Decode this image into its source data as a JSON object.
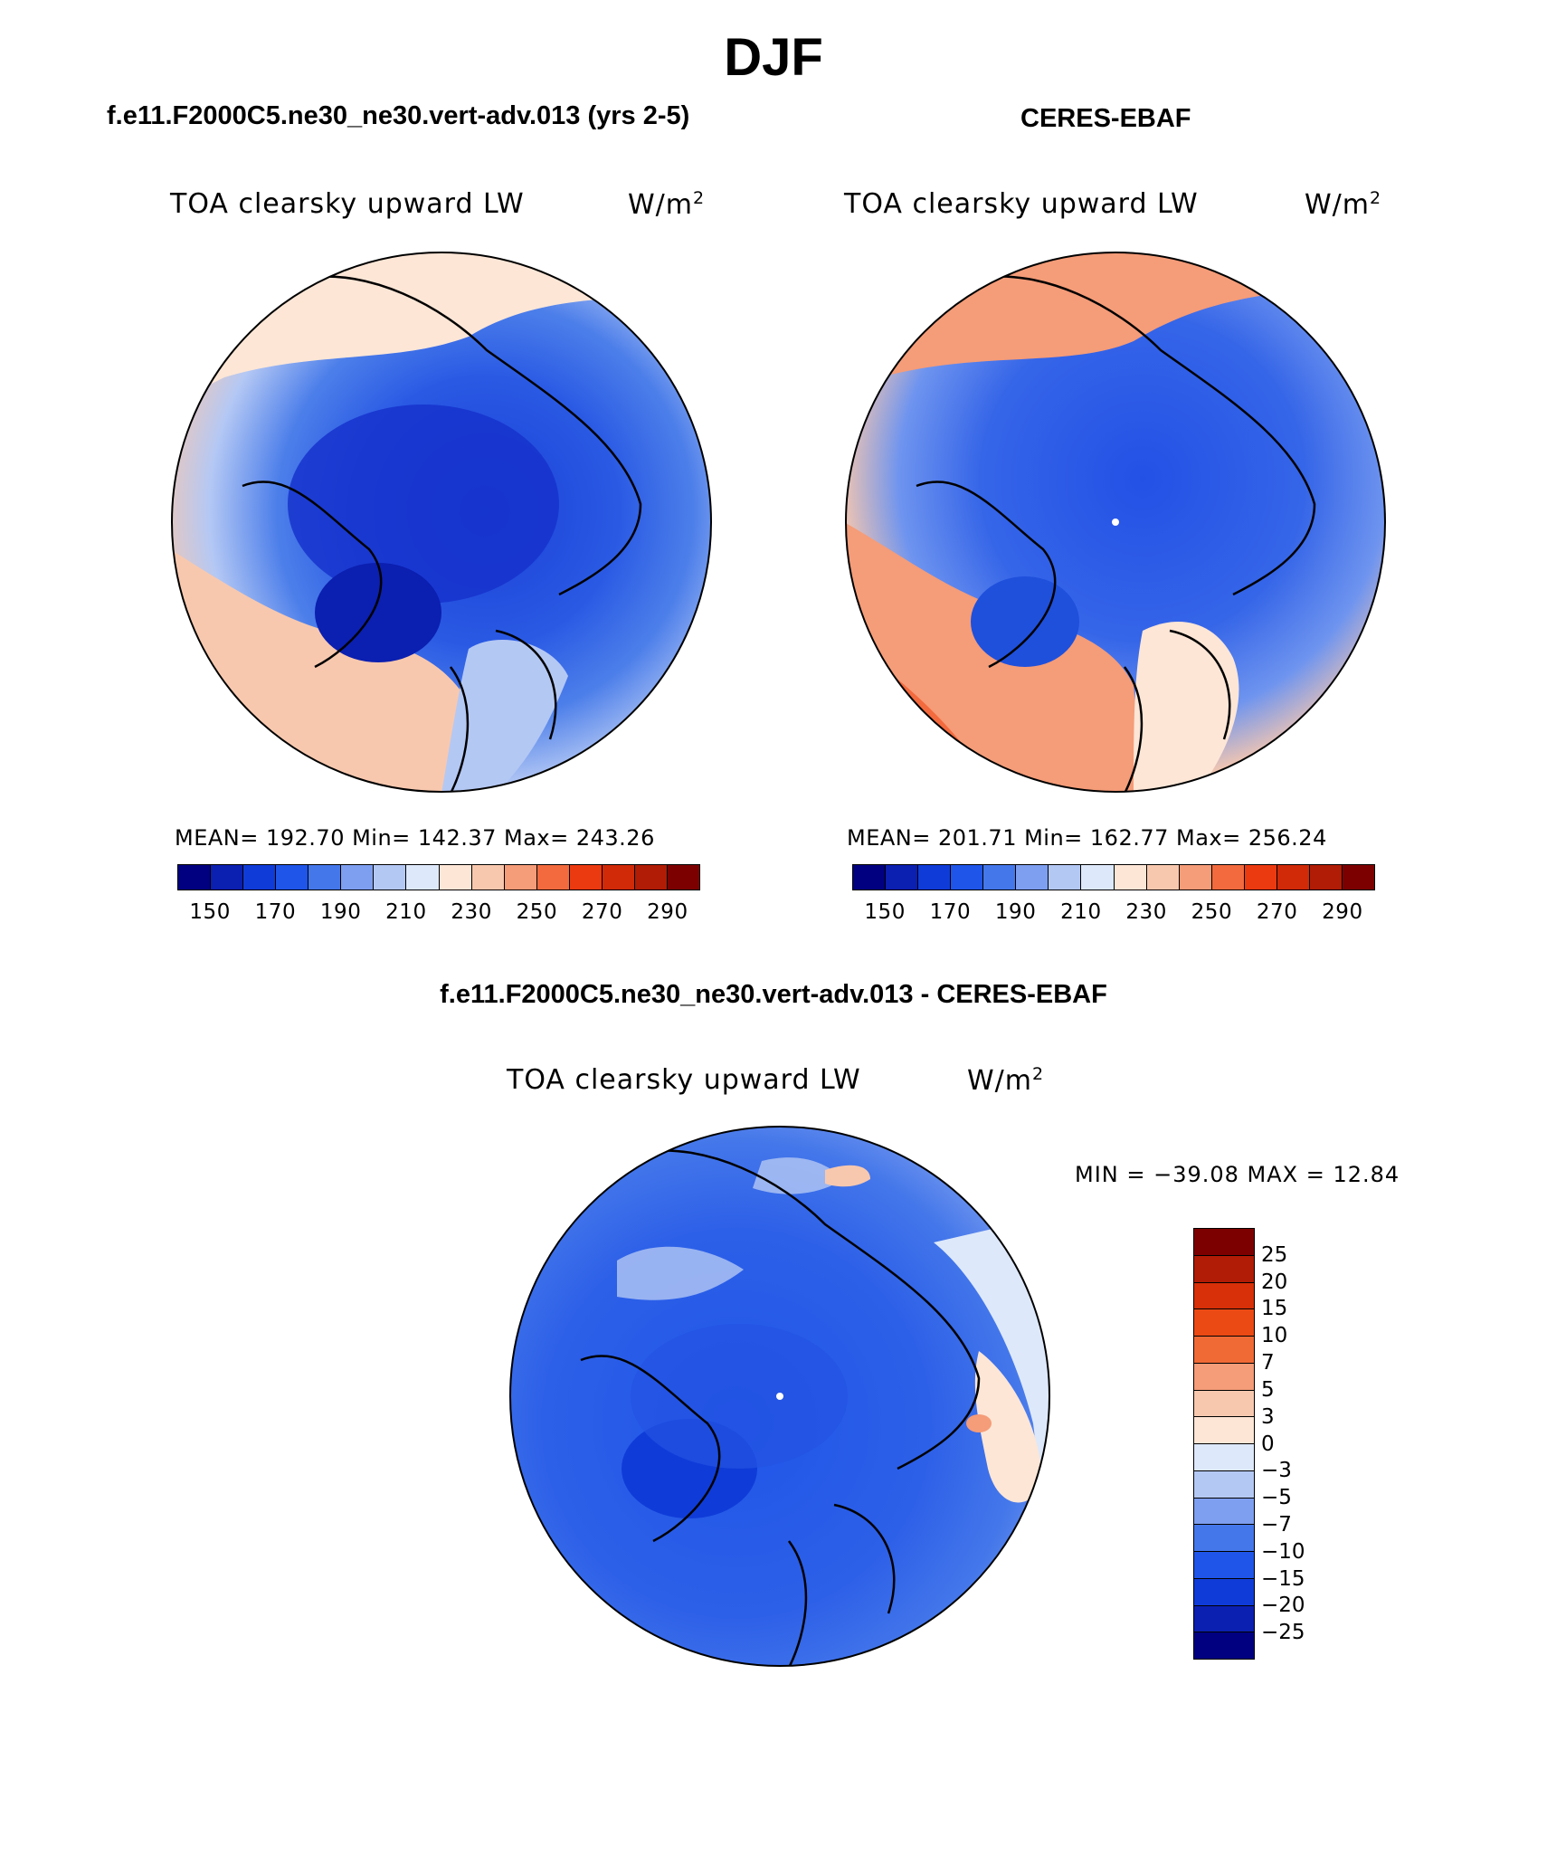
{
  "figure": {
    "title": "DJF"
  },
  "panels": {
    "model": {
      "title": "f.e11.F2000C5.ne30_ne30.vert-adv.013 (yrs 2-5)",
      "var_label": "TOA clearsky upward LW",
      "unit_label": "W/m",
      "unit_exp": "2",
      "stats": "MEAN= 192.70   Min= 142.37   Max= 243.26"
    },
    "obs": {
      "title": "CERES-EBAF",
      "var_label": "TOA clearsky upward LW",
      "unit_label": "W/m",
      "unit_exp": "2",
      "stats": "MEAN= 201.71   Min= 162.77   Max= 256.24"
    },
    "diff": {
      "title": "f.e11.F2000C5.ne30_ne30.vert-adv.013 - CERES-EBAF",
      "var_label": "TOA clearsky upward LW",
      "unit_label": "W/m",
      "unit_exp": "2",
      "minmax": "MIN = −39.08 MAX =   12.84"
    }
  },
  "colorbar_abs": {
    "tick_labels": [
      "150",
      "170",
      "190",
      "210",
      "230",
      "250",
      "270",
      "290"
    ],
    "colors": [
      "#000080",
      "#0b1fb0",
      "#0f3cd8",
      "#1f55e8",
      "#4477ea",
      "#7e9ff0",
      "#b4c8f4",
      "#dde8fa",
      "#fde6d6",
      "#f8c8ae",
      "#f59c78",
      "#f26a3e",
      "#eb3a10",
      "#d02a08",
      "#b01c05",
      "#7d0000"
    ]
  },
  "colorbar_diff": {
    "tick_labels": [
      "25",
      "20",
      "15",
      "10",
      "7",
      "5",
      "3",
      "0",
      "−3",
      "−5",
      "−7",
      "−10",
      "−15",
      "−20",
      "−25"
    ],
    "colors": [
      "#7d0000",
      "#b01c05",
      "#d83008",
      "#eb4a14",
      "#f06a36",
      "#f59c78",
      "#f8c8ae",
      "#fde6d6",
      "#dde8fa",
      "#b4c8f4",
      "#7e9ff0",
      "#4477ea",
      "#1f55e8",
      "#0f3cd8",
      "#0b1fb0",
      "#000080"
    ]
  }
}
